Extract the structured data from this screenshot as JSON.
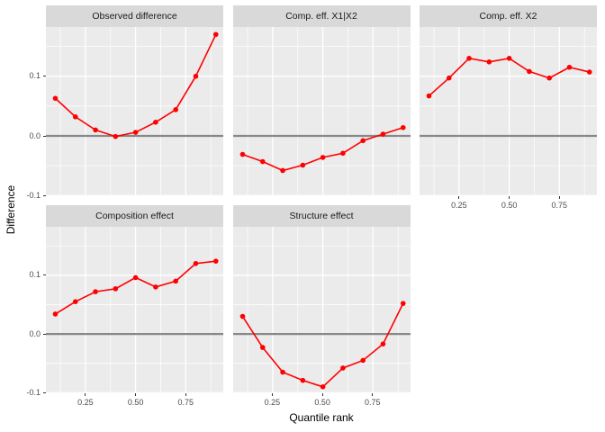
{
  "chart_data": {
    "type": "line",
    "x_label": "Quantile rank",
    "y_label": "Difference",
    "x": [
      0.1,
      0.2,
      0.3,
      0.4,
      0.5,
      0.6,
      0.7,
      0.8,
      0.9
    ],
    "panels": [
      {
        "title": "Observed difference",
        "values": [
          0.063,
          0.032,
          0.01,
          -0.001,
          0.006,
          0.023,
          0.044,
          0.1,
          0.17
        ]
      },
      {
        "title": "Comp. eff. X1|X2",
        "values": [
          -0.031,
          -0.043,
          -0.058,
          -0.049,
          -0.036,
          -0.029,
          -0.008,
          0.003,
          0.014
        ]
      },
      {
        "title": "Comp. eff. X2",
        "values": [
          0.067,
          0.097,
          0.13,
          0.124,
          0.13,
          0.108,
          0.097,
          0.115,
          0.107
        ]
      },
      {
        "title": "Composition effect",
        "values": [
          0.034,
          0.055,
          0.072,
          0.077,
          0.096,
          0.08,
          0.09,
          0.12,
          0.124
        ]
      },
      {
        "title": "Structure effect",
        "values": [
          0.03,
          -0.023,
          -0.065,
          -0.079,
          -0.09,
          -0.058,
          -0.045,
          -0.017,
          0.052
        ]
      }
    ],
    "x_ticks": {
      "values": [
        0.25,
        0.5,
        0.75
      ],
      "labels": [
        "0.25",
        "0.50",
        "0.75"
      ]
    },
    "y_ticks": {
      "values": [
        0.1,
        0.0,
        -0.1
      ],
      "labels": [
        "0.1",
        "0.0",
        "-0.1"
      ]
    },
    "x_minor": [
      0.125,
      0.375,
      0.625,
      0.875
    ],
    "y_minor": [
      0.15,
      0.05,
      -0.05
    ],
    "xlim": [
      0.053,
      0.937
    ],
    "ylim": [
      -0.101,
      0.1825
    ],
    "reference_line_y": 0,
    "grid": true,
    "legend": "none",
    "colors": {
      "series": "#fe0000",
      "reference_line": "#888888",
      "panel_bg": "#ebebeb",
      "strip_bg": "#d9d9d9",
      "grid": "#ffffff",
      "tick_text": "#4d4d4d",
      "strip_text": "#1a1a1a"
    }
  }
}
